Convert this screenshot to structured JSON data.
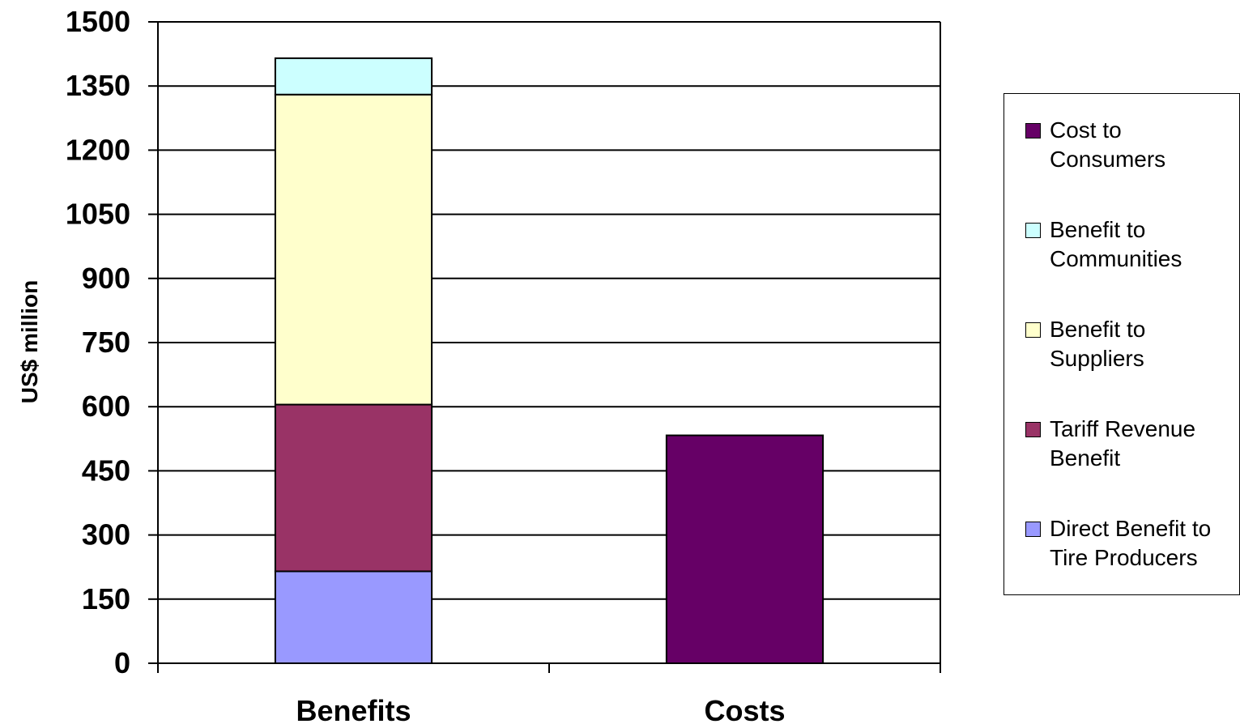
{
  "chart_data": {
    "type": "bar",
    "stacked": true,
    "categories": [
      "Benefits",
      "Costs"
    ],
    "series": [
      {
        "name": "Direct Benefit to Tire Producers",
        "color": "#9999FF",
        "values": [
          215,
          0
        ]
      },
      {
        "name": "Tariff Revenue Benefit",
        "color": "#993366",
        "values": [
          390,
          0
        ]
      },
      {
        "name": "Benefit to Suppliers",
        "color": "#FFFFCC",
        "values": [
          725,
          0
        ]
      },
      {
        "name": "Benefit to Communities",
        "color": "#CCFFFF",
        "values": [
          85,
          0
        ]
      },
      {
        "name": "Cost to Consumers",
        "color": "#660066",
        "values": [
          0,
          533
        ]
      }
    ],
    "title": "",
    "xlabel": "",
    "ylabel": "US$ million",
    "ylim": [
      0,
      1500
    ],
    "yticks": [
      "0",
      "150",
      "300",
      "450",
      "600",
      "750",
      "900",
      "1050",
      "1200",
      "1350",
      "1500"
    ],
    "grid": true,
    "legend_position": "right",
    "legend_order": [
      "Cost to Consumers",
      "Benefit to Communities",
      "Benefit to Suppliers",
      "Tariff Revenue Benefit",
      "Direct Benefit to Tire Producers"
    ]
  }
}
